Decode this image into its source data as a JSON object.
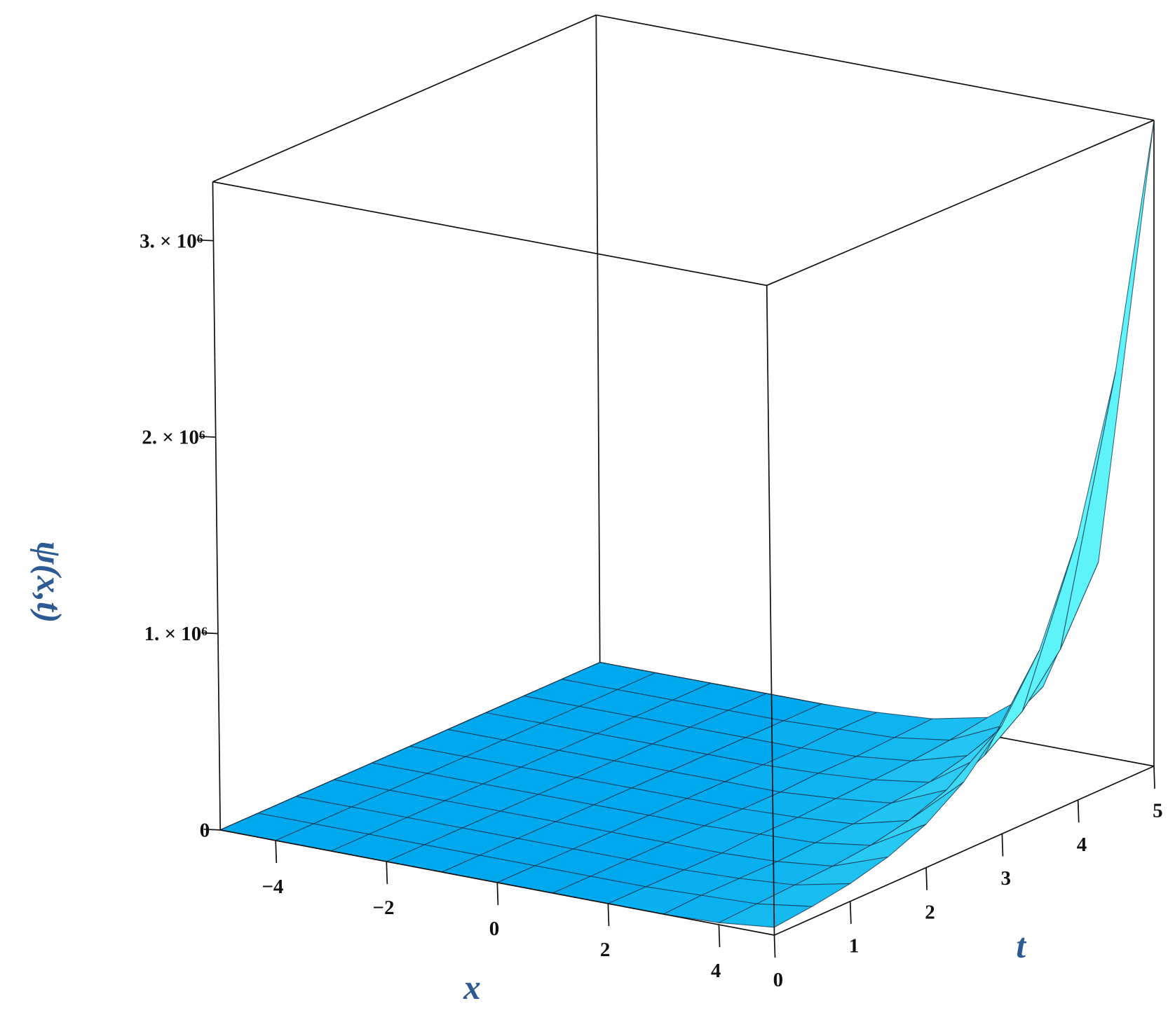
{
  "chart_data": {
    "type": "surface3d",
    "x_label": "x",
    "y_label": "t",
    "z_label": "ψ(x,t)",
    "x": [
      -5,
      -4,
      -3,
      -2,
      -1,
      0,
      1,
      2,
      3,
      4,
      5
    ],
    "y": [
      0,
      0.5,
      1,
      1.5,
      2,
      2.5,
      3,
      3.5,
      4,
      4.5,
      5
    ],
    "z": [
      [
        0,
        0,
        0,
        0,
        0,
        0,
        0,
        0,
        0,
        10000,
        40000
      ],
      [
        0,
        0,
        0,
        0,
        0,
        0,
        0,
        0,
        10000,
        20000,
        60000
      ],
      [
        0,
        0,
        0,
        0,
        0,
        0,
        0,
        0,
        10000,
        30000,
        90000
      ],
      [
        0,
        0,
        0,
        0,
        0,
        0,
        0,
        0,
        10000,
        40000,
        140000
      ],
      [
        0,
        0,
        0,
        0,
        0,
        0,
        0,
        10000,
        20000,
        60000,
        220000
      ],
      [
        0,
        0,
        0,
        0,
        0,
        0,
        0,
        10000,
        30000,
        100000,
        350000
      ],
      [
        0,
        0,
        0,
        0,
        0,
        0,
        0,
        20000,
        50000,
        170000,
        550000
      ],
      [
        0,
        0,
        0,
        0,
        0,
        0,
        10000,
        30000,
        70000,
        260000,
        850000
      ],
      [
        0,
        0,
        0,
        0,
        0,
        0,
        10000,
        40000,
        120000,
        400000,
        1340000
      ],
      [
        0,
        0,
        0,
        0,
        0,
        10000,
        20000,
        60000,
        190000,
        630000,
        2100000
      ],
      [
        0,
        0,
        0,
        0,
        0,
        10000,
        30000,
        90000,
        300000,
        990000,
        3300000
      ]
    ],
    "xlim": [
      -5,
      5
    ],
    "ylim": [
      0,
      5
    ],
    "zlim": [
      0,
      3300000
    ],
    "xticks": [
      {
        "value": -4,
        "label": "−4"
      },
      {
        "value": -2,
        "label": "−2"
      },
      0,
      2,
      4
    ],
    "yticks": [
      0,
      1,
      2,
      3,
      4,
      5
    ],
    "zticks": [
      0,
      {
        "value": 1000000,
        "label": "1. × 10⁶"
      },
      {
        "value": 2000000,
        "label": "2. × 10⁶"
      },
      {
        "value": 3000000,
        "label": "3. × 10⁶"
      }
    ],
    "color_low": "#00a9ee",
    "color_high": "#5ef3f8",
    "mesh_color": "#173650",
    "label_color": "#2d5a92"
  }
}
